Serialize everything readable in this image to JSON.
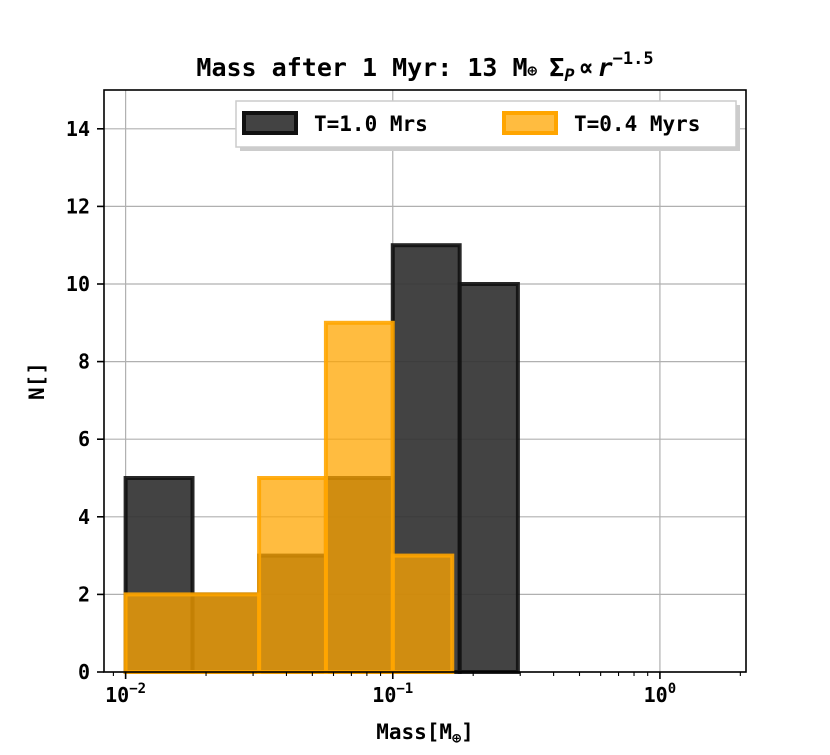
{
  "chart_data": {
    "type": "bar",
    "title": "Mass after 1 Myr: 13 M⊕ Σ_P ∝ r^−1.5",
    "xlabel": "Mass[M⊕]",
    "ylabel": "N[]",
    "xscale": "log",
    "xlim": [
      0.0083,
      2.1
    ],
    "ylim": [
      0,
      15
    ],
    "xticks": [
      {
        "value": 0.01,
        "base": "10",
        "exp": "−2"
      },
      {
        "value": 0.1,
        "base": "10",
        "exp": "−1"
      },
      {
        "value": 1,
        "base": "10",
        "exp": "0"
      }
    ],
    "yticks": [
      0,
      2,
      4,
      6,
      8,
      10,
      12,
      14
    ],
    "grid": true,
    "legend_position": "top-right",
    "series": [
      {
        "name": "T=1.0 Mrs",
        "color": "#333333",
        "edge": "#111111",
        "opacity": 0.92,
        "bins": [
          {
            "x0": 0.01,
            "x1": 0.0178,
            "count": 5
          },
          {
            "x0": 0.0178,
            "x1": 0.0316,
            "count": 2
          },
          {
            "x0": 0.0316,
            "x1": 0.0562,
            "count": 3
          },
          {
            "x0": 0.0562,
            "x1": 0.1,
            "count": 5
          },
          {
            "x0": 0.1,
            "x1": 0.178,
            "count": 11
          },
          {
            "x0": 0.178,
            "x1": 0.294,
            "count": 10
          }
        ]
      },
      {
        "name": "T=0.4 Myrs",
        "color": "#ffa500",
        "edge": "#ffa500",
        "opacity": 0.75,
        "bins": [
          {
            "x0": 0.01,
            "x1": 0.0316,
            "count": 2
          },
          {
            "x0": 0.0316,
            "x1": 0.0562,
            "count": 5
          },
          {
            "x0": 0.0562,
            "x1": 0.1,
            "count": 9
          },
          {
            "x0": 0.1,
            "x1": 0.167,
            "count": 3
          },
          {
            "x0": 0.167,
            "x1": 1.58,
            "count": 0
          }
        ]
      }
    ]
  }
}
